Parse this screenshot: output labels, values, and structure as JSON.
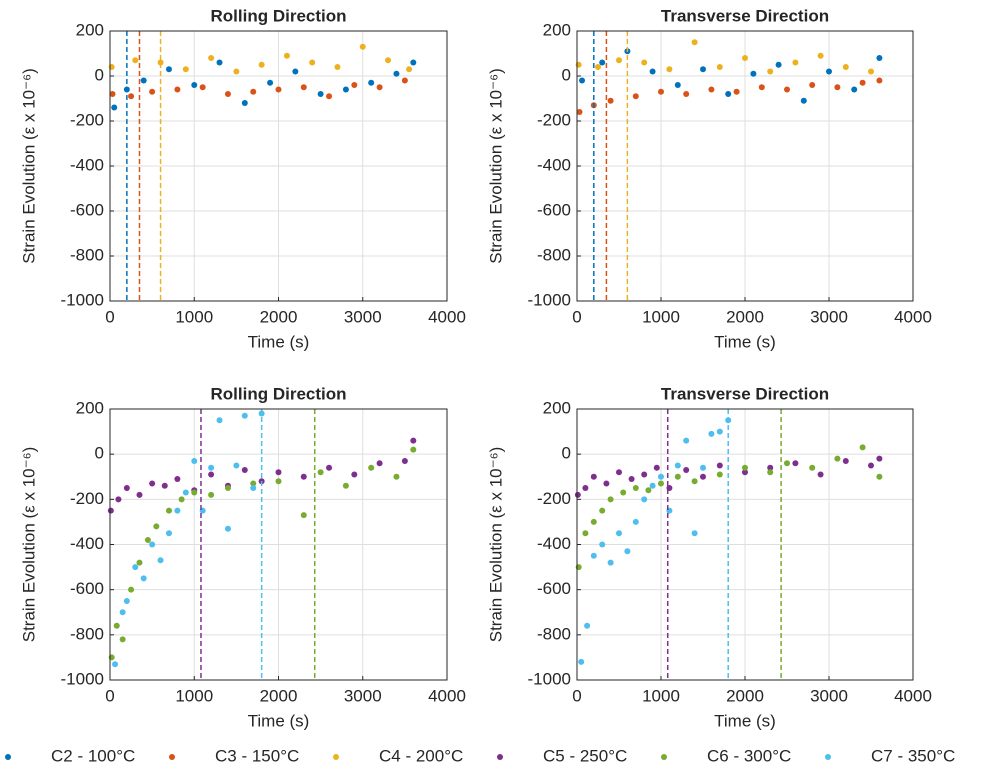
{
  "chart_data": [
    {
      "type": "scatter",
      "title": "Rolling Direction",
      "xlabel": "Time (s)",
      "ylabel": "Strain Evolution (ε x 10⁻⁶)",
      "xlim": [
        0,
        4000
      ],
      "ylim": [
        -1000,
        200
      ],
      "xticks": [
        0,
        1000,
        2000,
        3000,
        4000
      ],
      "yticks": [
        -1000,
        -800,
        -600,
        -400,
        -200,
        0,
        200
      ],
      "grid": true,
      "vlines": [
        {
          "x": 200,
          "color": "#0072BD"
        },
        {
          "x": 350,
          "color": "#D95319"
        },
        {
          "x": 600,
          "color": "#EDB120"
        }
      ],
      "series": [
        {
          "name": "C2 - 100°C",
          "color": "#0072BD",
          "x": [
            50,
            200,
            400,
            700,
            1000,
            1300,
            1600,
            1900,
            2200,
            2500,
            2800,
            3100,
            3400,
            3600
          ],
          "y": [
            -140,
            -60,
            -20,
            30,
            -40,
            60,
            -120,
            -30,
            20,
            -80,
            -60,
            -30,
            10,
            60
          ]
        },
        {
          "name": "C3 - 150°C",
          "color": "#D95319",
          "x": [
            30,
            250,
            500,
            800,
            1100,
            1400,
            1700,
            2000,
            2300,
            2600,
            2900,
            3200,
            3500
          ],
          "y": [
            -80,
            -90,
            -70,
            -60,
            -50,
            -80,
            -70,
            -60,
            -50,
            -90,
            -40,
            -50,
            -20
          ]
        },
        {
          "name": "C4 - 200°C",
          "color": "#EDB120",
          "x": [
            20,
            300,
            600,
            900,
            1200,
            1500,
            1800,
            2100,
            2400,
            2700,
            3000,
            3300,
            3550
          ],
          "y": [
            40,
            70,
            60,
            30,
            80,
            20,
            50,
            90,
            60,
            40,
            130,
            70,
            30
          ]
        }
      ]
    },
    {
      "type": "scatter",
      "title": "Transverse Direction",
      "xlabel": "Time (s)",
      "ylabel": "Strain Evolution (ε x 10⁻⁶)",
      "xlim": [
        0,
        4000
      ],
      "ylim": [
        -1000,
        200
      ],
      "xticks": [
        0,
        1000,
        2000,
        3000,
        4000
      ],
      "yticks": [
        -1000,
        -800,
        -600,
        -400,
        -200,
        0,
        200
      ],
      "grid": true,
      "vlines": [
        {
          "x": 200,
          "color": "#0072BD"
        },
        {
          "x": 350,
          "color": "#D95319"
        },
        {
          "x": 600,
          "color": "#EDB120"
        }
      ],
      "series": [
        {
          "color": "#0072BD",
          "x": [
            60,
            300,
            600,
            900,
            1200,
            1500,
            1800,
            2100,
            2400,
            2700,
            3000,
            3300,
            3600
          ],
          "y": [
            -20,
            60,
            110,
            20,
            -40,
            30,
            -80,
            10,
            50,
            -110,
            20,
            -60,
            80
          ]
        },
        {
          "color": "#D95319",
          "x": [
            30,
            200,
            400,
            700,
            1000,
            1300,
            1600,
            1900,
            2200,
            2500,
            2800,
            3100,
            3400,
            3600
          ],
          "y": [
            -160,
            -130,
            -110,
            -90,
            -70,
            -80,
            -60,
            -70,
            -50,
            -60,
            -40,
            -50,
            -30,
            -20
          ]
        },
        {
          "color": "#EDB120",
          "x": [
            20,
            250,
            500,
            800,
            1100,
            1400,
            1700,
            2000,
            2300,
            2600,
            2900,
            3200,
            3500
          ],
          "y": [
            50,
            40,
            70,
            60,
            30,
            150,
            40,
            80,
            20,
            60,
            90,
            40,
            20
          ]
        }
      ]
    },
    {
      "type": "scatter",
      "title": "Rolling Direction",
      "xlabel": "Time (s)",
      "ylabel": "Strain Evolution (ε x 10⁻⁶)",
      "xlim": [
        0,
        4000
      ],
      "ylim": [
        -1000,
        200
      ],
      "xticks": [
        0,
        1000,
        2000,
        3000,
        4000
      ],
      "yticks": [
        -1000,
        -800,
        -600,
        -400,
        -200,
        0,
        200
      ],
      "grid": true,
      "vlines": [
        {
          "x": 1080,
          "color": "#7E2F8E"
        },
        {
          "x": 1800,
          "color": "#4DBEEE"
        },
        {
          "x": 2430,
          "color": "#77AC30"
        }
      ],
      "series": [
        {
          "name": "C5 - 250°C",
          "color": "#7E2F8E",
          "x": [
            10,
            100,
            200,
            350,
            500,
            650,
            800,
            1000,
            1200,
            1400,
            1600,
            1800,
            2000,
            2300,
            2600,
            2900,
            3200,
            3500,
            3600
          ],
          "y": [
            -250,
            -200,
            -150,
            -180,
            -130,
            -140,
            -110,
            -160,
            -90,
            -140,
            -70,
            -120,
            -80,
            -100,
            -60,
            -90,
            -40,
            -30,
            60
          ]
        },
        {
          "name": "C6 - 300°C",
          "color": "#77AC30",
          "x": [
            20,
            80,
            150,
            250,
            350,
            450,
            550,
            700,
            850,
            1000,
            1200,
            1400,
            1700,
            2000,
            2300,
            2500,
            2800,
            3100,
            3400,
            3600
          ],
          "y": [
            -900,
            -760,
            -820,
            -600,
            -480,
            -380,
            -320,
            -250,
            -200,
            -170,
            -180,
            -150,
            -130,
            -120,
            -270,
            -80,
            -140,
            -60,
            -100,
            20
          ]
        },
        {
          "name": "C7 - 350°C",
          "color": "#4DBEEE",
          "x": [
            60,
            150,
            200,
            300,
            400,
            500,
            600,
            700,
            800,
            900,
            1000,
            1100,
            1200,
            1300,
            1400,
            1500,
            1600,
            1700,
            1800
          ],
          "y": [
            -930,
            -700,
            -650,
            -500,
            -550,
            -400,
            -470,
            -350,
            -250,
            -170,
            -30,
            -250,
            -60,
            150,
            -330,
            -50,
            170,
            -150,
            180
          ]
        }
      ]
    },
    {
      "type": "scatter",
      "title": "Transverse Direction",
      "xlabel": "Time (s)",
      "ylabel": "Strain Evolution (ε x 10⁻⁶)",
      "xlim": [
        0,
        4000
      ],
      "ylim": [
        -1000,
        200
      ],
      "xticks": [
        0,
        1000,
        2000,
        3000,
        4000
      ],
      "yticks": [
        -1000,
        -800,
        -600,
        -400,
        -200,
        0,
        200
      ],
      "grid": true,
      "vlines": [
        {
          "x": 1080,
          "color": "#7E2F8E"
        },
        {
          "x": 1800,
          "color": "#4DBEEE"
        },
        {
          "x": 2430,
          "color": "#77AC30"
        }
      ],
      "series": [
        {
          "color": "#7E2F8E",
          "x": [
            10,
            100,
            200,
            350,
            500,
            650,
            800,
            950,
            1100,
            1300,
            1500,
            1700,
            2000,
            2300,
            2600,
            2900,
            3200,
            3500,
            3600
          ],
          "y": [
            -180,
            -150,
            -100,
            -130,
            -80,
            -110,
            -90,
            -60,
            -150,
            -70,
            -100,
            -50,
            -80,
            -60,
            -40,
            -90,
            -30,
            -50,
            -20
          ]
        },
        {
          "color": "#77AC30",
          "x": [
            20,
            100,
            200,
            300,
            400,
            550,
            700,
            850,
            1000,
            1200,
            1400,
            1700,
            2000,
            2300,
            2500,
            2800,
            3100,
            3400,
            3600
          ],
          "y": [
            -500,
            -350,
            -300,
            -250,
            -200,
            -170,
            -150,
            -160,
            -130,
            -100,
            -120,
            -90,
            -60,
            -80,
            -40,
            -60,
            -20,
            30,
            -100
          ]
        },
        {
          "color": "#4DBEEE",
          "x": [
            50,
            120,
            200,
            300,
            400,
            500,
            600,
            700,
            800,
            900,
            1000,
            1100,
            1200,
            1300,
            1400,
            1500,
            1600,
            1700,
            1800
          ],
          "y": [
            -920,
            -760,
            -450,
            -400,
            -480,
            -350,
            -430,
            -300,
            -200,
            -140,
            -100,
            -250,
            -50,
            60,
            -350,
            -60,
            90,
            100,
            150
          ]
        }
      ]
    }
  ]
}
